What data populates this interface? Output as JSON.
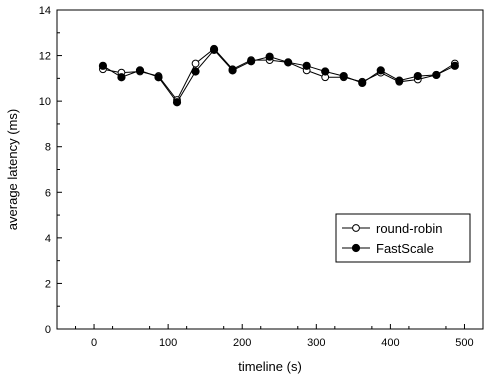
{
  "chart_data": {
    "type": "line",
    "title": "",
    "xlabel": "timeline (s)",
    "ylabel": "average latency (ms)",
    "xlim": [
      -50,
      525
    ],
    "ylim": [
      0,
      14
    ],
    "xticks": [
      0,
      100,
      200,
      300,
      400,
      500
    ],
    "yticks": [
      0,
      2,
      4,
      6,
      8,
      10,
      12,
      14
    ],
    "x_tick_labels": [
      "0",
      "100",
      "200",
      "300",
      "400",
      "500"
    ],
    "y_tick_labels": [
      "0",
      "2",
      "4",
      "6",
      "8",
      "10",
      "12",
      "14"
    ],
    "grid": false,
    "legend_position": "lower-right",
    "x": [
      12,
      37,
      62,
      87,
      112,
      137,
      162,
      187,
      212,
      237,
      262,
      287,
      312,
      337,
      362,
      387,
      412,
      437,
      462,
      487
    ],
    "series": [
      {
        "name": "round-robin",
        "marker": "open-circle",
        "values": [
          11.4,
          11.25,
          11.3,
          11.1,
          10.05,
          11.65,
          12.3,
          11.4,
          11.8,
          11.8,
          11.7,
          11.35,
          11.05,
          11.05,
          10.85,
          11.25,
          10.85,
          10.95,
          11.15,
          11.65
        ]
      },
      {
        "name": "FastScale",
        "marker": "filled-circle",
        "values": [
          11.55,
          11.05,
          11.35,
          11.05,
          9.95,
          11.3,
          12.25,
          11.35,
          11.75,
          11.95,
          11.7,
          11.55,
          11.3,
          11.1,
          10.8,
          11.35,
          10.9,
          11.1,
          11.15,
          11.55
        ]
      }
    ]
  }
}
